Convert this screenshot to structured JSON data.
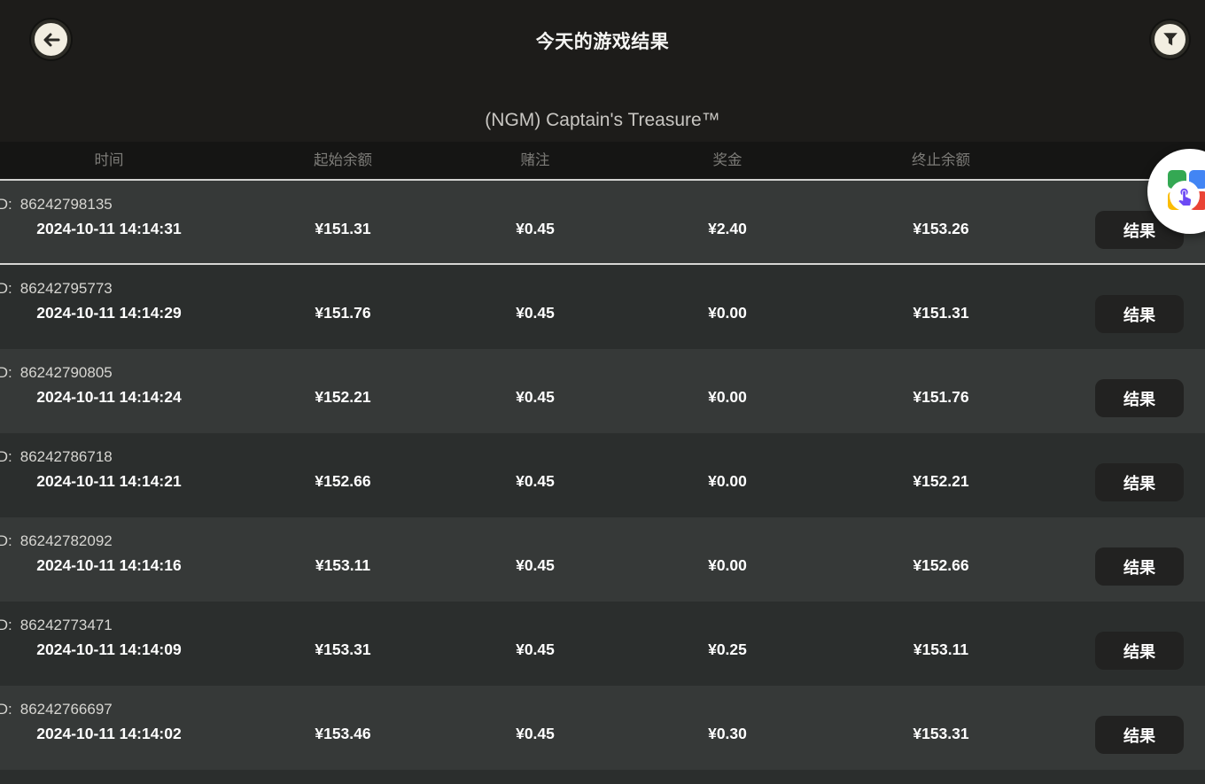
{
  "page": {
    "title": "今天的游戏结果"
  },
  "game": {
    "title": "(NGM) Captain's Treasure™"
  },
  "table": {
    "columns": [
      "时间",
      "起始余额",
      "赌注",
      "奖金",
      "终止余额"
    ],
    "id_prefix": "ID:",
    "result_button_label": "结果",
    "rows": [
      {
        "id": "86242798135",
        "time": "2024-10-11 14:14:31",
        "start_balance": "¥151.31",
        "bet": "¥0.45",
        "prize": "¥2.40",
        "end_balance": "¥153.26"
      },
      {
        "id": "86242795773",
        "time": "2024-10-11 14:14:29",
        "start_balance": "¥151.76",
        "bet": "¥0.45",
        "prize": "¥0.00",
        "end_balance": "¥151.31"
      },
      {
        "id": "86242790805",
        "time": "2024-10-11 14:14:24",
        "start_balance": "¥152.21",
        "bet": "¥0.45",
        "prize": "¥0.00",
        "end_balance": "¥151.76"
      },
      {
        "id": "86242786718",
        "time": "2024-10-11 14:14:21",
        "start_balance": "¥152.66",
        "bet": "¥0.45",
        "prize": "¥0.00",
        "end_balance": "¥152.21"
      },
      {
        "id": "86242782092",
        "time": "2024-10-11 14:14:16",
        "start_balance": "¥153.11",
        "bet": "¥0.45",
        "prize": "¥0.00",
        "end_balance": "¥152.66"
      },
      {
        "id": "86242773471",
        "time": "2024-10-11 14:14:09",
        "start_balance": "¥153.31",
        "bet": "¥0.45",
        "prize": "¥0.25",
        "end_balance": "¥153.11"
      },
      {
        "id": "86242766697",
        "time": "2024-10-11 14:14:02",
        "start_balance": "¥153.46",
        "bet": "¥0.45",
        "prize": "¥0.30",
        "end_balance": "¥153.31"
      }
    ]
  },
  "icons": {
    "back": "arrow-left-icon",
    "filter": "funnel-icon",
    "fab": "extension-touch-icon"
  },
  "colors": {
    "page_bg": "#1d1c1a",
    "header_band_bg": "#151514",
    "row_odd_bg": "#363938",
    "row_even_bg": "#2b2e2d",
    "divider_light": "#d2d2d0",
    "button_bg": "#222221",
    "circle_cream": "#f2eee1",
    "fab_green": "#34a853",
    "fab_blue": "#4285f4",
    "fab_yellow": "#fbbc05",
    "fab_red": "#ea4335",
    "fab_purple": "#6c49f4"
  }
}
